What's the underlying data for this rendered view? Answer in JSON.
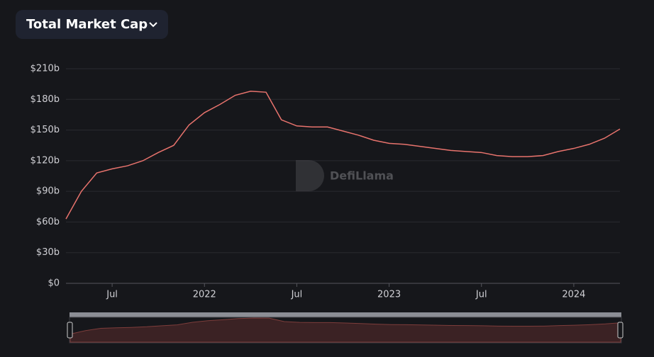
{
  "chart_data": {
    "type": "line",
    "title": "Total Market Cap",
    "watermark": "DefiLlama",
    "x": [
      "2021-04",
      "2021-05",
      "2021-06",
      "2021-07",
      "2021-08",
      "2021-09",
      "2021-10",
      "2021-11",
      "2021-12",
      "2022-01",
      "2022-02",
      "2022-03",
      "2022-04",
      "2022-05",
      "2022-06",
      "2022-07",
      "2022-08",
      "2022-09",
      "2022-10",
      "2022-11",
      "2022-12",
      "2023-01",
      "2023-02",
      "2023-03",
      "2023-04",
      "2023-05",
      "2023-06",
      "2023-07",
      "2023-08",
      "2023-09",
      "2023-10",
      "2023-11",
      "2023-12",
      "2024-01",
      "2024-02",
      "2024-03",
      "2024-04"
    ],
    "values": [
      63,
      90,
      108,
      112,
      115,
      120,
      128,
      135,
      155,
      167,
      175,
      184,
      188,
      187,
      160,
      154,
      153,
      153,
      149,
      145,
      140,
      137,
      136,
      134,
      132,
      130,
      129,
      128,
      125,
      124,
      124,
      125,
      129,
      132,
      136,
      142,
      151
    ],
    "color": "#e8736d",
    "xlim": [
      "2021-04",
      "2024-04"
    ],
    "xticks": [
      {
        "value": "2021-07",
        "label": "Jul"
      },
      {
        "value": "2022-01",
        "label": "2022"
      },
      {
        "value": "2022-07",
        "label": "Jul"
      },
      {
        "value": "2023-01",
        "label": "2023"
      },
      {
        "value": "2023-07",
        "label": "Jul"
      },
      {
        "value": "2024-01",
        "label": "2024"
      }
    ],
    "ylim": [
      0,
      210
    ],
    "yticks": [
      {
        "value": 0,
        "label": "$0"
      },
      {
        "value": 30,
        "label": "$30b"
      },
      {
        "value": 60,
        "label": "$60b"
      },
      {
        "value": 90,
        "label": "$90b"
      },
      {
        "value": 120,
        "label": "$120b"
      },
      {
        "value": 150,
        "label": "$150b"
      },
      {
        "value": 180,
        "label": "$180b"
      },
      {
        "value": 210,
        "label": "$210b"
      }
    ],
    "grid": true
  }
}
